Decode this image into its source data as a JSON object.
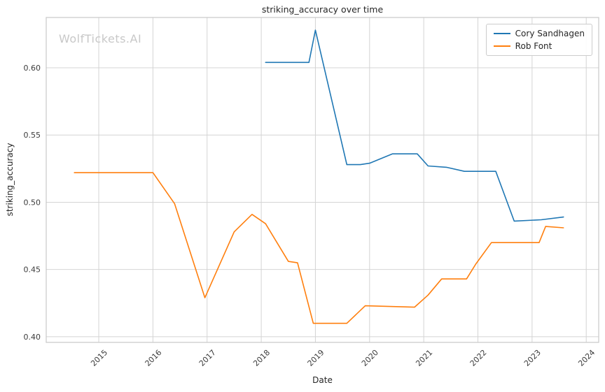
{
  "chart": {
    "title": "striking_accuracy over time",
    "watermark": "WolfTickets.AI",
    "xlabel": "Date",
    "ylabel": "striking_accuracy"
  },
  "colors": {
    "grid": "#d4d4d4",
    "spine": "#c8c8c8",
    "tick_text": "#3b3b3b",
    "background": "#ffffff",
    "series_blue": "#1f77b4",
    "series_orange": "#ff7f0e"
  },
  "chart_data": {
    "type": "line",
    "title": "striking_accuracy over time",
    "xlabel": "Date",
    "ylabel": "striking_accuracy",
    "grid": true,
    "legend_position": "upper right",
    "xlim": [
      2014.03,
      2024.23
    ],
    "ylim": [
      0.3958,
      0.6374
    ],
    "x_ticks": [
      2015,
      2016,
      2017,
      2018,
      2019,
      2020,
      2021,
      2022,
      2023,
      2024
    ],
    "x_tick_labels": [
      "2015",
      "2016",
      "2017",
      "2018",
      "2019",
      "2020",
      "2021",
      "2022",
      "2023",
      "2024"
    ],
    "y_ticks": [
      0.4,
      0.45,
      0.5,
      0.55,
      0.6
    ],
    "y_tick_labels": [
      "0.40",
      "0.45",
      "0.50",
      "0.55",
      "0.60"
    ],
    "series": [
      {
        "name": "Cory Sandhagen",
        "color": "#1f77b4",
        "points": [
          [
            2018.08,
            0.604
          ],
          [
            2018.88,
            0.604
          ],
          [
            2019.0,
            0.628
          ],
          [
            2019.58,
            0.528
          ],
          [
            2019.83,
            0.528
          ],
          [
            2020.0,
            0.529
          ],
          [
            2020.42,
            0.536
          ],
          [
            2020.88,
            0.536
          ],
          [
            2021.08,
            0.527
          ],
          [
            2021.42,
            0.526
          ],
          [
            2021.75,
            0.523
          ],
          [
            2022.33,
            0.523
          ],
          [
            2022.67,
            0.486
          ],
          [
            2023.17,
            0.487
          ],
          [
            2023.58,
            0.489
          ]
        ]
      },
      {
        "name": "Rob Font",
        "color": "#ff7f0e",
        "points": [
          [
            2014.55,
            0.522
          ],
          [
            2016.0,
            0.522
          ],
          [
            2016.4,
            0.499
          ],
          [
            2016.96,
            0.429
          ],
          [
            2017.5,
            0.478
          ],
          [
            2017.83,
            0.491
          ],
          [
            2018.08,
            0.484
          ],
          [
            2018.5,
            0.456
          ],
          [
            2018.67,
            0.455
          ],
          [
            2018.96,
            0.41
          ],
          [
            2019.58,
            0.41
          ],
          [
            2019.92,
            0.423
          ],
          [
            2020.83,
            0.422
          ],
          [
            2021.08,
            0.431
          ],
          [
            2021.33,
            0.443
          ],
          [
            2021.79,
            0.443
          ],
          [
            2021.96,
            0.454
          ],
          [
            2022.25,
            0.47
          ],
          [
            2023.13,
            0.47
          ],
          [
            2023.25,
            0.482
          ],
          [
            2023.58,
            0.481
          ]
        ]
      }
    ]
  }
}
